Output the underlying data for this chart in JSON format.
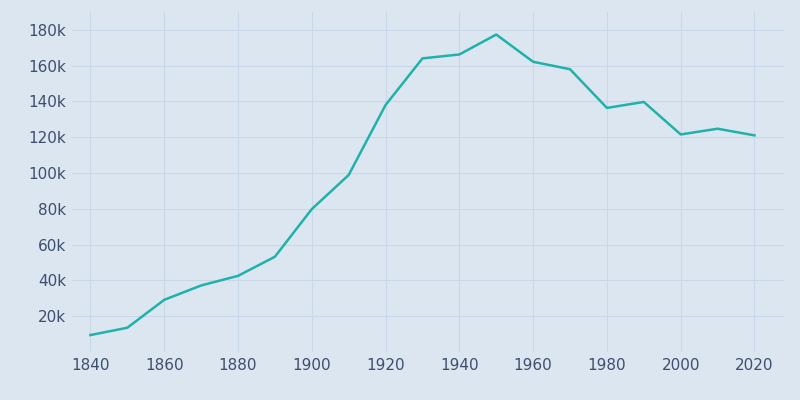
{
  "years": [
    1840,
    1850,
    1860,
    1870,
    1880,
    1890,
    1900,
    1910,
    1920,
    1930,
    1940,
    1950,
    1960,
    1970,
    1980,
    1990,
    2000,
    2010,
    2020
  ],
  "population": [
    9468,
    13555,
    29152,
    37180,
    42551,
    53230,
    79850,
    98915,
    138036,
    164072,
    166267,
    177397,
    162178,
    158017,
    136392,
    139739,
    121578,
    124775,
    121054
  ],
  "line_color": "#20b2aa",
  "bg_color": "#dce6f0",
  "plot_bg_color": "#dce6f0",
  "tick_label_color": "#3d4f6e",
  "grid_color": "#c8d8e8",
  "line_width": 1.8,
  "xlim": [
    1835,
    2028
  ],
  "ylim": [
    0,
    190000
  ],
  "yticks": [
    20000,
    40000,
    60000,
    80000,
    100000,
    120000,
    140000,
    160000,
    180000
  ],
  "xticks": [
    1840,
    1860,
    1880,
    1900,
    1920,
    1940,
    1960,
    1980,
    2000,
    2020
  ],
  "figsize": [
    8.0,
    4.0
  ],
  "dpi": 100
}
